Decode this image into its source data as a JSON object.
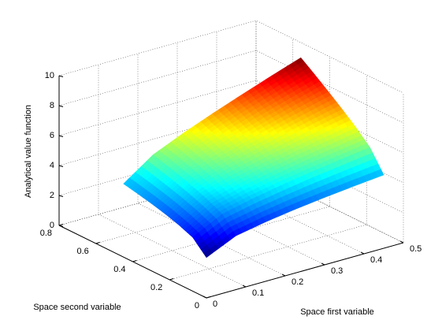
{
  "chart_data": {
    "type": "surface",
    "xlabel": "Space first variable",
    "ylabel": "Space second variable",
    "zlabel": "Analytical value function",
    "x": [
      0,
      0.075,
      0.15,
      0.225,
      0.3,
      0.375,
      0.45
    ],
    "y": [
      0,
      0.075,
      0.15,
      0.225,
      0.3,
      0.375,
      0.45
    ],
    "z": [
      [
        2.7,
        3.6,
        3.97,
        4.26,
        4.5,
        4.71,
        4.9
      ],
      [
        3.6,
        4.58,
        5.03,
        5.4,
        5.72,
        6.01,
        6.28
      ],
      [
        3.97,
        5.03,
        5.56,
        6.01,
        6.41,
        6.78,
        7.14
      ],
      [
        4.26,
        5.4,
        6.01,
        6.54,
        7.02,
        7.47,
        7.91
      ],
      [
        4.5,
        5.72,
        6.41,
        7.02,
        7.58,
        8.12,
        8.63
      ],
      [
        4.71,
        6.01,
        6.78,
        7.47,
        8.12,
        8.73,
        9.33
      ],
      [
        4.9,
        6.28,
        7.14,
        7.91,
        8.63,
        9.33,
        10
      ]
    ],
    "xlim": [
      0,
      0.5
    ],
    "xticks": [
      0,
      0.1,
      0.2,
      0.3,
      0.4,
      0.5
    ],
    "ylim": [
      0,
      0.8
    ],
    "yticks": [
      0,
      0.2,
      0.4,
      0.6,
      0.8
    ],
    "zlim": [
      0,
      10
    ],
    "zticks": [
      0,
      2,
      4,
      6,
      8,
      10
    ],
    "colormap": "jet",
    "grid": true
  }
}
